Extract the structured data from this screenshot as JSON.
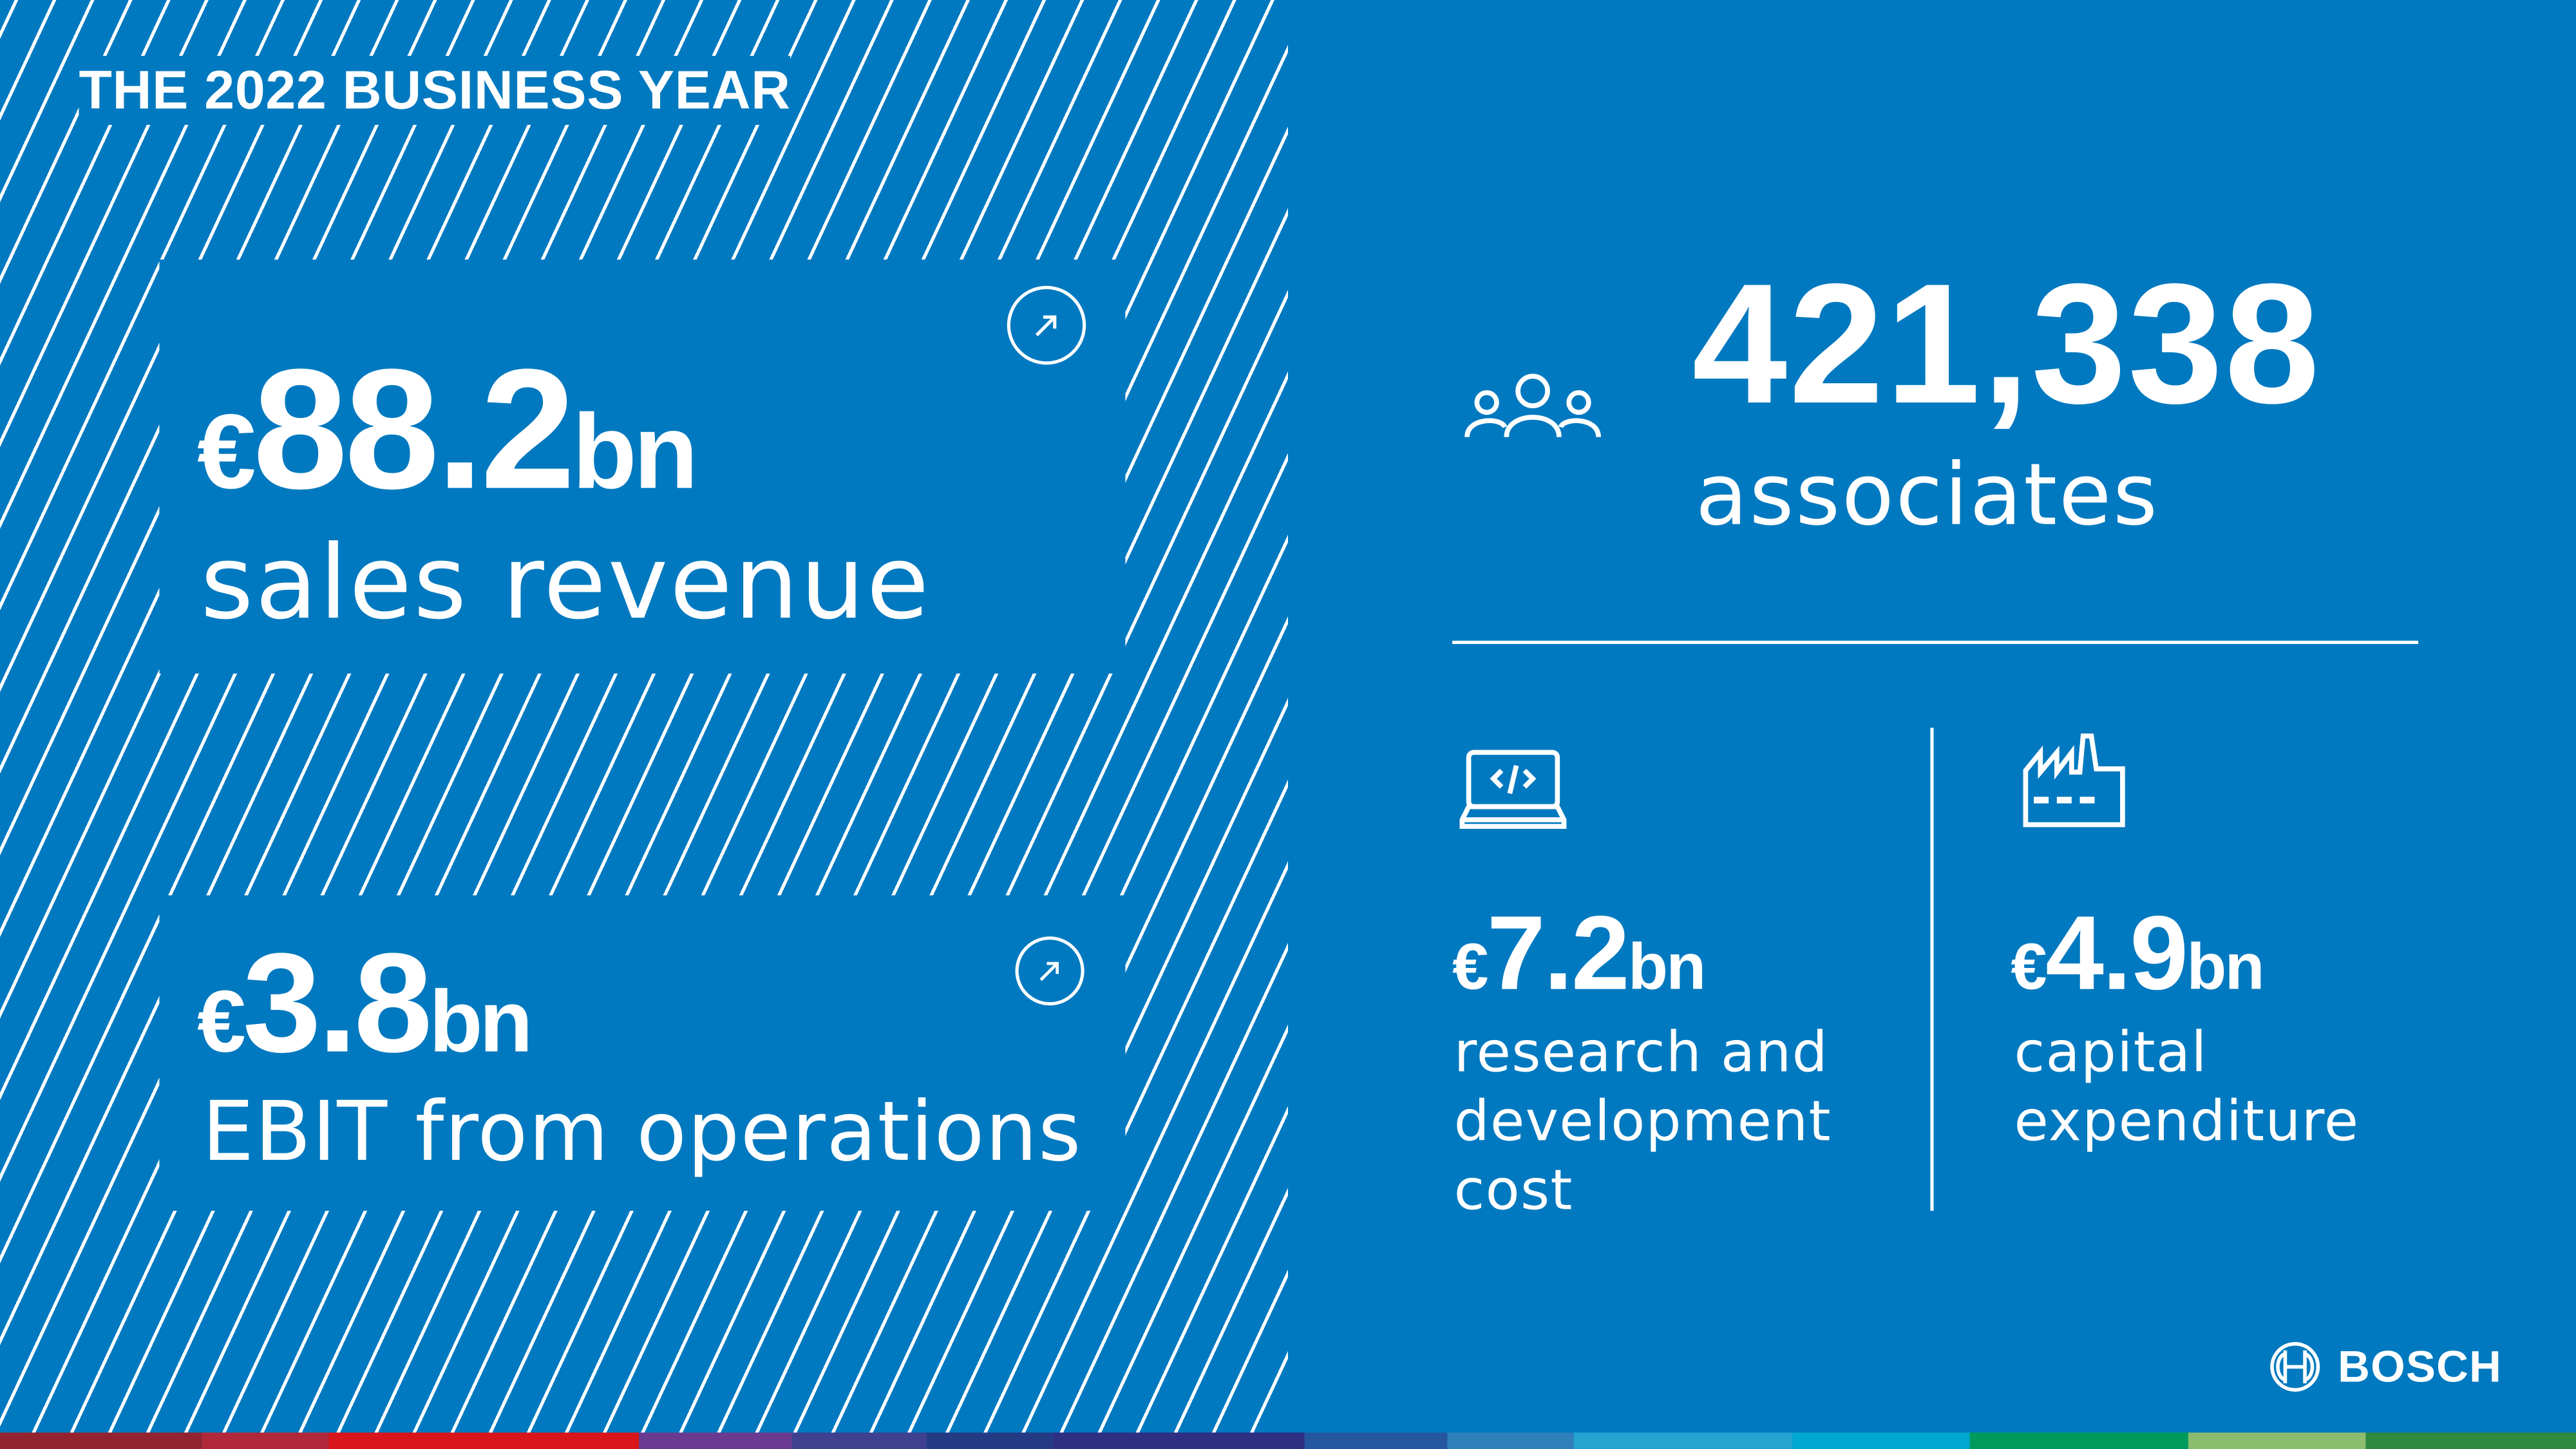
{
  "header": {
    "title": "THE 2022 BUSINESS YEAR"
  },
  "sales": {
    "currency": "€",
    "value": "88.2",
    "unit": "bn",
    "label": "sales revenue",
    "icon": "arrow-up-right-icon"
  },
  "ebit": {
    "currency": "€",
    "value": "3.8",
    "unit": "bn",
    "label": "EBIT from operations",
    "icon": "arrow-up-right-icon"
  },
  "associates": {
    "value": "421,338",
    "label": "associates",
    "icon": "people-icon"
  },
  "rnd": {
    "currency": "€",
    "value": "7.2",
    "unit": "bn",
    "label_lines": [
      "research and",
      "development",
      "cost"
    ],
    "icon": "laptop-code-icon"
  },
  "capex": {
    "currency": "€",
    "value": "4.9",
    "unit": "bn",
    "label_lines": [
      "capital",
      "expenditure"
    ],
    "icon": "factory-icon"
  },
  "brand": {
    "name": "BOSCH"
  },
  "colors": {
    "background": "#0079c0",
    "text": "#ffffff",
    "stripe": [
      "#93232f",
      "#b0283a",
      "#d7151b",
      "#6a3a90",
      "#3f4090",
      "#243a85",
      "#2e2e82",
      "#2556a0",
      "#2e7fba",
      "#25a3d1",
      "#00a8cf",
      "#009b5c",
      "#8cbc6e",
      "#2f8a3f"
    ]
  }
}
